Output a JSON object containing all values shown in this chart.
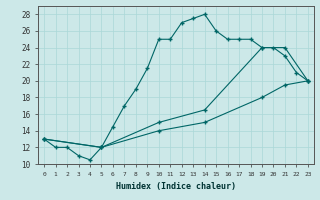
{
  "xlabel": "Humidex (Indice chaleur)",
  "background_color": "#cce8e8",
  "line_color": "#006666",
  "xlim": [
    -0.5,
    23.5
  ],
  "ylim": [
    10,
    29
  ],
  "yticks": [
    10,
    12,
    14,
    16,
    18,
    20,
    22,
    24,
    26,
    28
  ],
  "xticks": [
    0,
    1,
    2,
    3,
    4,
    5,
    6,
    7,
    8,
    9,
    10,
    11,
    12,
    13,
    14,
    15,
    16,
    17,
    18,
    19,
    20,
    21,
    22,
    23
  ],
  "line1": {
    "x": [
      0,
      1,
      2,
      3,
      4,
      5,
      6,
      7,
      8,
      9,
      10,
      11,
      12,
      13,
      14,
      15,
      16,
      17,
      18,
      19,
      20,
      21,
      22,
      23
    ],
    "y": [
      13,
      12,
      12,
      11,
      10.5,
      12,
      14.5,
      17,
      19,
      21.5,
      25,
      25,
      27,
      27.5,
      28,
      26,
      25,
      25,
      25,
      24,
      24,
      23,
      21,
      20
    ]
  },
  "line2": {
    "x": [
      0,
      5,
      10,
      14,
      19,
      21,
      23
    ],
    "y": [
      13,
      12,
      14,
      15,
      18,
      19.5,
      20
    ]
  },
  "line3": {
    "x": [
      0,
      5,
      10,
      14,
      19,
      21,
      23
    ],
    "y": [
      13,
      12,
      15,
      16.5,
      24,
      24,
      20
    ]
  }
}
